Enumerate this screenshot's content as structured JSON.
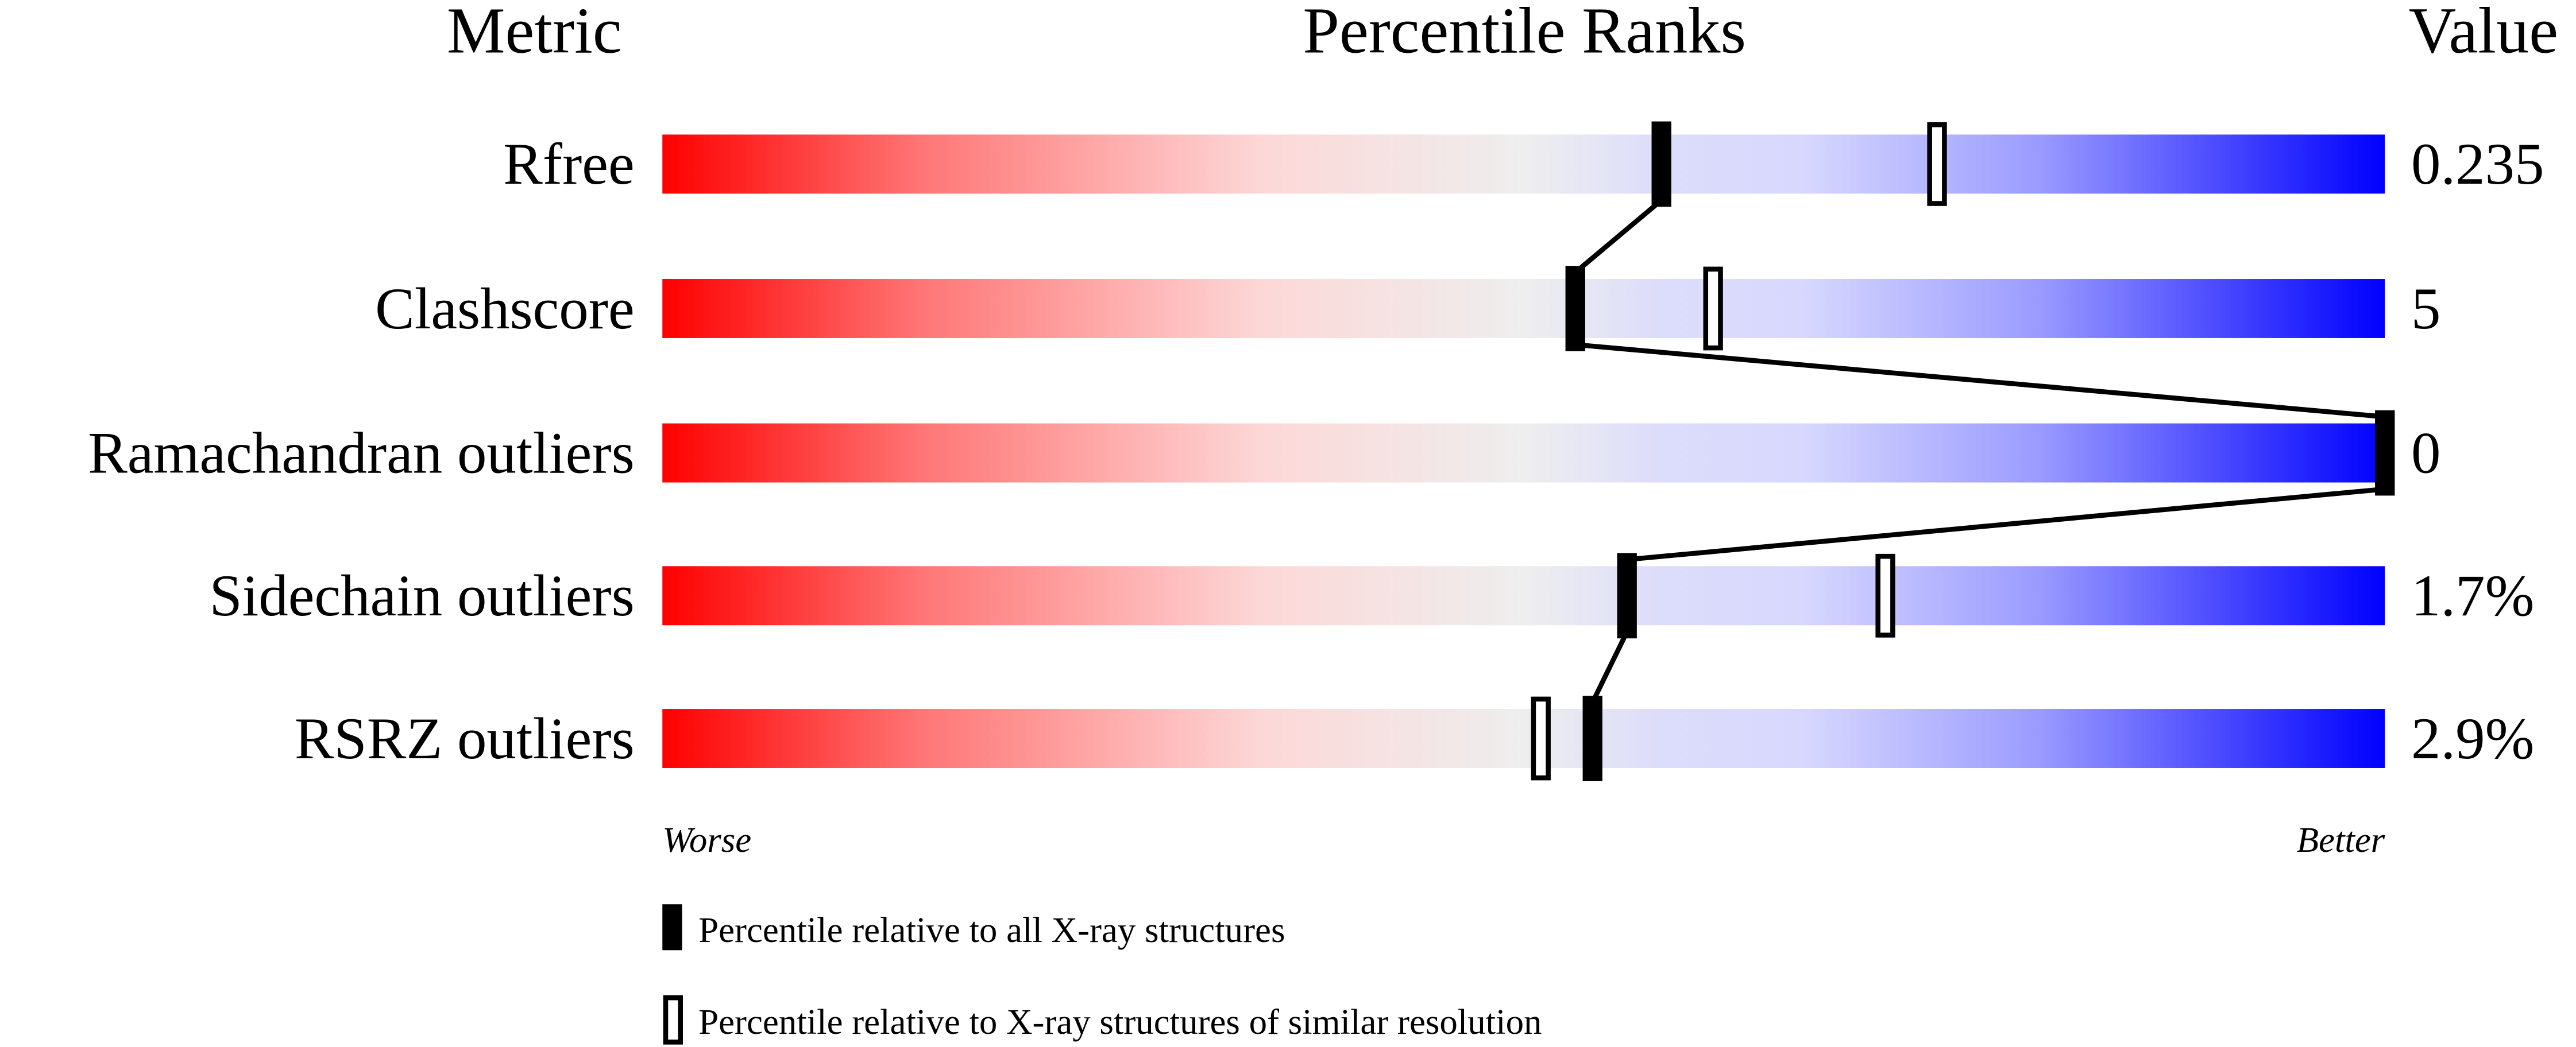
{
  "chart_data": {
    "type": "percentile-slider",
    "headers": {
      "metric": "Metric",
      "ranks": "Percentile Ranks",
      "value": "Value"
    },
    "axis": {
      "left_label": "Worse",
      "right_label": "Better",
      "range": [
        0,
        100
      ]
    },
    "gradient_colors": {
      "worse": "#ff0000",
      "middle": "#eeeeee",
      "better": "#0000ff"
    },
    "metrics": [
      {
        "name": "Rfree",
        "value": "0.235",
        "percentile_all": 58,
        "percentile_similar": 74
      },
      {
        "name": "Clashscore",
        "value": "5",
        "percentile_all": 53,
        "percentile_similar": 61
      },
      {
        "name": "Ramachandran outliers",
        "value": "0",
        "percentile_all": 100,
        "percentile_similar": 100
      },
      {
        "name": "Sidechain outliers",
        "value": "1.7%",
        "percentile_all": 56,
        "percentile_similar": 71
      },
      {
        "name": "RSRZ outliers",
        "value": "2.9%",
        "percentile_all": 54,
        "percentile_similar": 51
      }
    ],
    "legend": [
      {
        "marker": "filled",
        "label": "Percentile relative to all X-ray structures"
      },
      {
        "marker": "open",
        "label": "Percentile relative to X-ray structures of similar resolution"
      }
    ]
  }
}
